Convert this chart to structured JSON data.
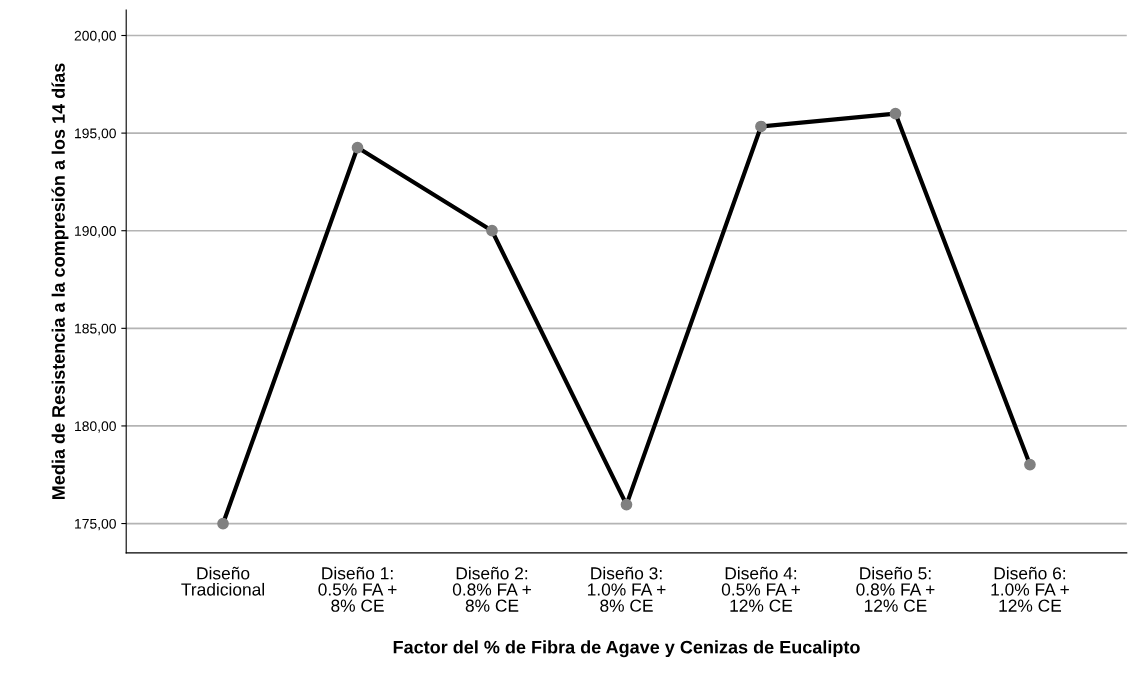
{
  "chart_data": {
    "type": "line",
    "xlabel": "Factor del % de Fibra de Agave y Cenizas de Eucalipto",
    "ylabel": "Media de Resistencia a la compresión a los 14 días",
    "categories": [
      "Diseño\nTradicional",
      "Diseño 1:\n0.5% FA +\n8% CE",
      "Diseño 2:\n0.8% FA +\n8% CE",
      "Diseño 3:\n1.0% FA +\n8% CE",
      "Diseño 4:\n0.5% FA +\n12% CE",
      "Diseño 5:\n0.8% FA +\n12% CE",
      "Diseño 6:\n1.0% FA +\n12% CE"
    ],
    "series": [
      {
        "color": "#000000",
        "values": [
          175.0,
          194.26,
          190.0,
          175.97,
          195.34,
          196.0,
          178.02
        ]
      }
    ],
    "ylim": [
      173.5,
      201.3
    ],
    "yticks": [
      {
        "value": 175,
        "label": "175,00"
      },
      {
        "value": 180,
        "label": "180,00"
      },
      {
        "value": 185,
        "label": "185,00"
      },
      {
        "value": 190,
        "label": "190,00"
      },
      {
        "value": 195,
        "label": "195,00"
      },
      {
        "value": 200,
        "label": "200,00"
      }
    ],
    "grid": "y",
    "marker": "circle",
    "line_style": "solid"
  }
}
